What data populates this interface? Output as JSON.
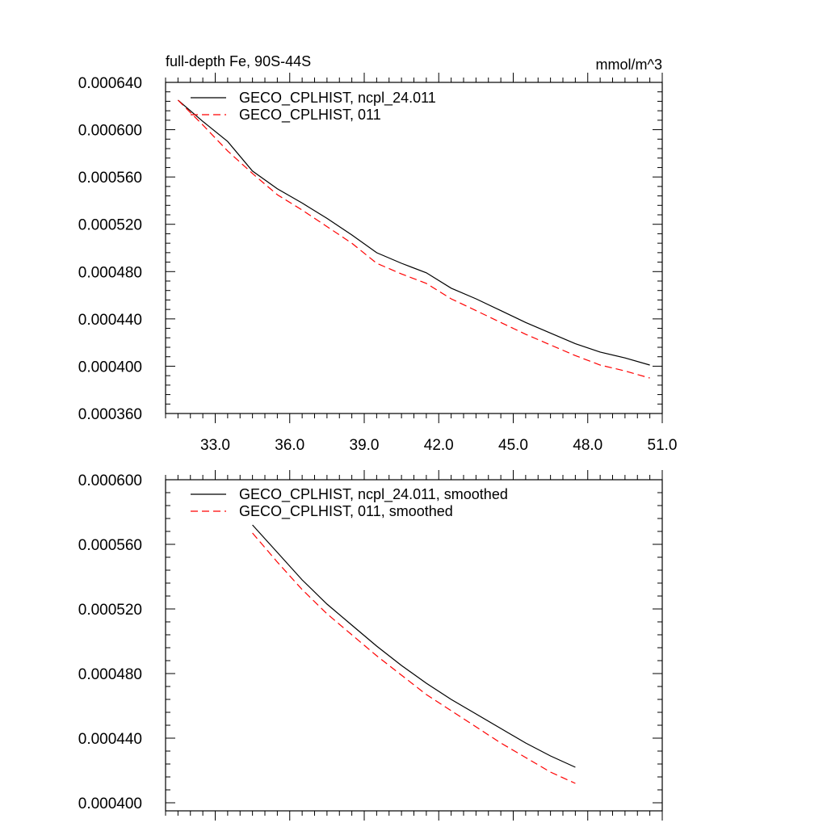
{
  "chart_data": [
    {
      "type": "line",
      "title": "full-depth Fe, 90S-44S",
      "units": "mmol/m^3",
      "xlim": [
        31.0,
        51.0
      ],
      "ylim": [
        0.00036,
        0.00064
      ],
      "x_ticks": [
        "33.0",
        "36.0",
        "39.0",
        "42.0",
        "45.0",
        "48.0",
        "51.0"
      ],
      "y_ticks": [
        "0.000360",
        "0.000400",
        "0.000440",
        "0.000480",
        "0.000520",
        "0.000560",
        "0.000600",
        "0.000640"
      ],
      "series": [
        {
          "name": "GECO_CPLHIST, ncpl_24.011",
          "color": "#000000",
          "dash": "solid",
          "x": [
            31.5,
            32.5,
            33.5,
            34.5,
            35.5,
            36.5,
            37.5,
            38.5,
            39.5,
            40.5,
            41.5,
            42.5,
            43.5,
            44.5,
            45.5,
            46.5,
            47.5,
            48.5,
            49.5,
            50.5
          ],
          "values": [
            0.000625,
            0.000607,
            0.00059,
            0.000565,
            0.00055,
            0.000538,
            0.000525,
            0.000511,
            0.000496,
            0.000487,
            0.000479,
            0.000466,
            0.000457,
            0.000447,
            0.000437,
            0.000428,
            0.000419,
            0.000412,
            0.000407,
            0.000401
          ]
        },
        {
          "name": "GECO_CPLHIST, 011",
          "color": "#ff0000",
          "dash": "dashed",
          "x": [
            31.5,
            32.5,
            33.5,
            34.5,
            35.5,
            36.5,
            37.5,
            38.5,
            39.5,
            40.5,
            41.5,
            42.5,
            43.5,
            44.5,
            45.5,
            46.5,
            47.5,
            48.5,
            49.5,
            50.5
          ],
          "values": [
            0.000625,
            0.000604,
            0.000582,
            0.000563,
            0.000545,
            0.000532,
            0.000518,
            0.000504,
            0.000487,
            0.000478,
            0.00047,
            0.000457,
            0.000447,
            0.000437,
            0.000427,
            0.000418,
            0.000409,
            0.000401,
            0.000396,
            0.00039
          ]
        }
      ]
    },
    {
      "type": "line",
      "title": "",
      "ylim": [
        0.000395,
        0.0006
      ],
      "xlim": [
        31.0,
        51.0
      ],
      "y_ticks": [
        "0.000400",
        "0.000440",
        "0.000480",
        "0.000520",
        "0.000560",
        "0.000600"
      ],
      "series": [
        {
          "name": "GECO_CPLHIST, ncpl_24.011, smoothed",
          "color": "#000000",
          "dash": "solid",
          "x": [
            34.5,
            35.5,
            36.5,
            37.5,
            38.5,
            39.5,
            40.5,
            41.5,
            42.5,
            43.5,
            44.5,
            45.5,
            46.5,
            47.5
          ],
          "values": [
            0.000572,
            0.000555,
            0.000538,
            0.000523,
            0.00051,
            0.000497,
            0.000485,
            0.000474,
            0.000464,
            0.000455,
            0.000446,
            0.000437,
            0.000429,
            0.000422
          ]
        },
        {
          "name": "GECO_CPLHIST, 011, smoothed",
          "color": "#ff0000",
          "dash": "dashed",
          "x": [
            34.5,
            35.5,
            36.5,
            37.5,
            38.5,
            39.5,
            40.5,
            41.5,
            42.5,
            43.5,
            44.5,
            45.5,
            46.5,
            47.5
          ],
          "values": [
            0.000567,
            0.000549,
            0.000532,
            0.000517,
            0.000504,
            0.000491,
            0.000479,
            0.000467,
            0.000457,
            0.000447,
            0.000437,
            0.000428,
            0.000419,
            0.000412
          ]
        }
      ]
    }
  ]
}
